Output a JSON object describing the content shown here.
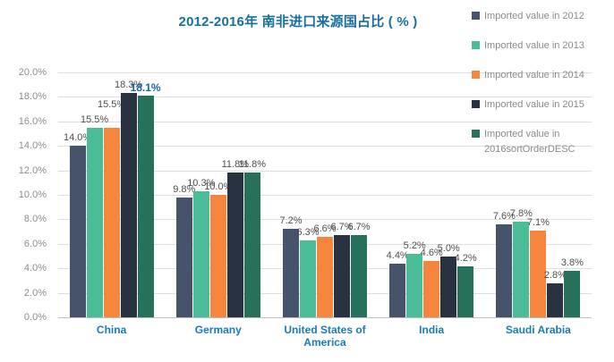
{
  "title": "2012-2016年 南非进口来源国占比 ( % )",
  "colors": {
    "title": "#176FA0",
    "category_label": "#1A7AB8",
    "value_label": "#4D4D4D",
    "highlight_label": "#1666A6",
    "axis_label": "#8C8C8C",
    "legend_text": "#8A8A8A",
    "gridline": "#DEDEDE",
    "axisline": "#BFBFBF"
  },
  "legend": {
    "items": [
      {
        "label_lines": [
          "Imported value in 2012"
        ],
        "color": "#47536B"
      },
      {
        "label_lines": [
          "Imported value in 2013"
        ],
        "color": "#4ABD98"
      },
      {
        "label_lines": [
          "Imported value in 2014"
        ],
        "color": "#F6863D"
      },
      {
        "label_lines": [
          "Imported value in 2015"
        ],
        "color": "#283241"
      },
      {
        "label_lines": [
          "Imported value in",
          "2016sortOrderDESC"
        ],
        "color": "#27705C"
      }
    ]
  },
  "chart_data": {
    "type": "bar",
    "title": "2012-2016年 南非进口来源国占比 ( % )",
    "categories": [
      "China",
      "Germany",
      "United States of America",
      "India",
      "Saudi Arabia"
    ],
    "series": [
      {
        "name": "Imported value in 2012",
        "color": "#47536B",
        "values": [
          14.0,
          9.8,
          7.2,
          4.4,
          7.6
        ]
      },
      {
        "name": "Imported value in 2013",
        "color": "#4ABD98",
        "values": [
          15.5,
          10.3,
          6.3,
          5.2,
          7.8
        ]
      },
      {
        "name": "Imported value in 2014",
        "color": "#F6863D",
        "values": [
          15.5,
          10.0,
          6.6,
          4.6,
          7.1
        ]
      },
      {
        "name": "Imported value in 2015",
        "color": "#283241",
        "values": [
          18.3,
          11.8,
          6.7,
          5.0,
          2.8
        ]
      },
      {
        "name": "Imported value in 2016sortOrderDESC",
        "color": "#27705C",
        "values": [
          18.1,
          11.8,
          6.7,
          4.2,
          3.8
        ]
      }
    ],
    "ylim": [
      0,
      20
    ],
    "ytick_step": 2,
    "ytick_labels": [
      "0.0%",
      "2.0%",
      "4.0%",
      "6.0%",
      "8.0%",
      "10.0%",
      "12.0%",
      "14.0%",
      "16.0%",
      "18.0%",
      "20.0%"
    ],
    "value_labels": true,
    "grid": true,
    "legend_position": "top-right",
    "highlight_label": {
      "category_index": 0,
      "series_index": 4,
      "text": "18.1%"
    }
  }
}
